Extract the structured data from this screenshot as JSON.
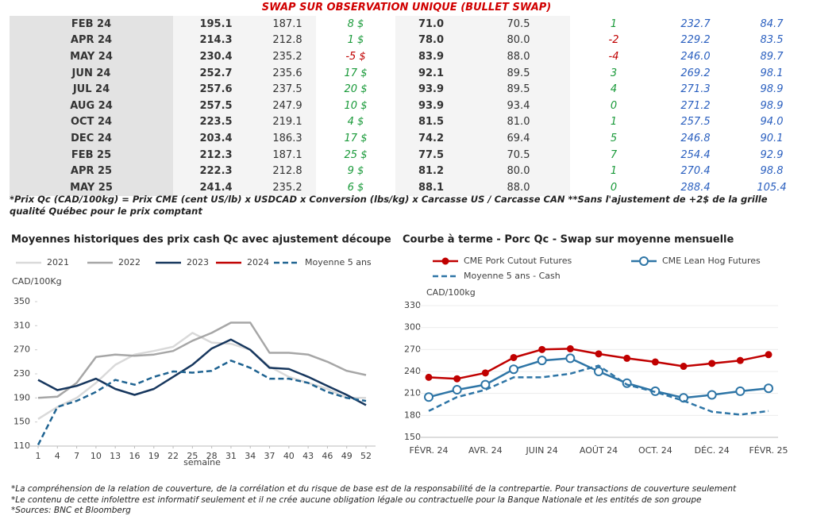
{
  "title": "SWAP SUR OBSERVATION UNIQUE (BULLET SWAP)",
  "table": {
    "rows": [
      [
        "FEB 24",
        "195.1",
        "187.1",
        "8 $",
        "71.0",
        "70.5",
        "1",
        "232.7",
        "84.7"
      ],
      [
        "APR 24",
        "214.3",
        "212.8",
        "1 $",
        "78.0",
        "80.0",
        "-2",
        "229.2",
        "83.5"
      ],
      [
        "MAY 24",
        "230.4",
        "235.2",
        "-5 $",
        "83.9",
        "88.0",
        "-4",
        "246.0",
        "89.7"
      ],
      [
        "JUN 24",
        "252.7",
        "235.6",
        "17 $",
        "92.1",
        "89.5",
        "3",
        "269.2",
        "98.1"
      ],
      [
        "JUL 24",
        "257.6",
        "237.5",
        "20 $",
        "93.9",
        "89.5",
        "4",
        "271.3",
        "98.9"
      ],
      [
        "AUG 24",
        "257.5",
        "247.9",
        "10 $",
        "93.9",
        "93.4",
        "0",
        "271.2",
        "98.9"
      ],
      [
        "OCT 24",
        "223.5",
        "219.1",
        "4 $",
        "81.5",
        "81.0",
        "1",
        "257.5",
        "94.0"
      ],
      [
        "DEC 24",
        "203.4",
        "186.3",
        "17 $",
        "74.2",
        "69.4",
        "5",
        "246.8",
        "90.1"
      ],
      [
        "FEB 25",
        "212.3",
        "187.1",
        "25 $",
        "77.5",
        "70.5",
        "7",
        "254.4",
        "92.9"
      ],
      [
        "APR 25",
        "222.3",
        "212.8",
        "9 $",
        "81.2",
        "80.0",
        "1",
        "270.4",
        "98.8"
      ],
      [
        "MAY 25",
        "241.4",
        "235.2",
        "6 $",
        "88.1",
        "88.0",
        "0",
        "288.4",
        "105.4"
      ]
    ]
  },
  "note": "*Prix Qc (CAD/100kg) = Prix CME (cent US/lb) x USDCAD x Conversion (lbs/kg) x Carcasse US / Carcasse CAN **Sans l'ajustement de +2$ de la grille qualité Québec pour le prix comptant",
  "chart_data": [
    {
      "type": "line",
      "title": "Moyennes historiques des prix cash Qc avec ajustement découpe",
      "y_label": "CAD/100Kg",
      "x_label": "semaine",
      "x": [
        1,
        4,
        7,
        10,
        13,
        16,
        19,
        22,
        25,
        28,
        31,
        34,
        37,
        40,
        43,
        46,
        49,
        52
      ],
      "xlim": [
        1,
        52
      ],
      "xticks": [
        1,
        4,
        7,
        10,
        13,
        16,
        19,
        22,
        25,
        28,
        31,
        34,
        37,
        40,
        43,
        46,
        49,
        52
      ],
      "ylim": [
        110,
        350
      ],
      "yticks": [
        110,
        150,
        190,
        230,
        270,
        310,
        350
      ],
      "grid": false,
      "series": [
        {
          "name": "2021",
          "color": "#d9d9d9",
          "values": [
            155,
            175,
            190,
            215,
            245,
            262,
            268,
            275,
            298,
            282,
            280,
            270,
            242,
            225,
            215,
            205,
            190,
            190
          ]
        },
        {
          "name": "2022",
          "color": "#a6a6a6",
          "values": [
            190,
            192,
            215,
            258,
            262,
            260,
            262,
            268,
            285,
            298,
            315,
            315,
            265,
            265,
            262,
            250,
            235,
            228
          ]
        },
        {
          "name": "2023",
          "color": "#17375e",
          "values": [
            220,
            203,
            210,
            222,
            205,
            195,
            205,
            225,
            245,
            272,
            287,
            270,
            240,
            238,
            225,
            210,
            195,
            178
          ]
        },
        {
          "name": "2024",
          "color": "#c00000",
          "values": [
            null,
            null,
            null,
            null,
            null,
            null,
            null,
            null,
            null,
            null,
            null,
            null,
            null,
            null,
            null,
            null,
            null,
            null
          ]
        },
        {
          "name": "Moyenne 5 ans",
          "color": "#1f6391",
          "dashed": true,
          "values": [
            112,
            175,
            185,
            200,
            220,
            212,
            225,
            234,
            232,
            235,
            252,
            240,
            222,
            222,
            215,
            200,
            190,
            185
          ]
        }
      ]
    },
    {
      "type": "line",
      "title": "Courbe à terme - Porc Qc - Swap sur moyenne mensuelle",
      "y_label": "CAD/100kg",
      "categories": [
        "FÉVR. 24",
        null,
        "AVR. 24",
        null,
        "JUIN 24",
        null,
        "AOÛT 24",
        null,
        "OCT. 24",
        null,
        "DÉC. 24",
        null,
        "FÉVR. 25"
      ],
      "ylim": [
        150,
        330
      ],
      "yticks": [
        150,
        180,
        210,
        240,
        270,
        300,
        330
      ],
      "grid": true,
      "series": [
        {
          "name": "CME Pork Cutout Futures",
          "color": "#c00000",
          "marker": "filled",
          "values": [
            232,
            230,
            238,
            259,
            270,
            271,
            264,
            258,
            253,
            247,
            251,
            255,
            263
          ]
        },
        {
          "name": "CME Lean Hog Futures",
          "color": "#2e75a6",
          "marker": "open",
          "values": [
            205,
            215,
            222,
            243,
            255,
            258,
            240,
            224,
            213,
            204,
            208,
            213,
            217
          ]
        },
        {
          "name": "Moyenne 5 ans - Cash",
          "color": "#2e75a6",
          "dashed": true,
          "values": [
            186,
            205,
            215,
            232,
            232,
            237,
            248,
            222,
            212,
            200,
            185,
            181,
            186
          ]
        }
      ]
    }
  ],
  "footer": [
    "*La compréhension de la relation de couverture, de la corrélation et du risque de base est de la responsabilité de la contrepartie. Pour transactions de couverture seulement",
    "*Le contenu de cette infolettre est informatif seulement et il ne crée aucune obligation légale ou contractuelle pour la Banque Nationale et les entités de son groupe",
    "*Sources: BNC et Bloomberg"
  ]
}
